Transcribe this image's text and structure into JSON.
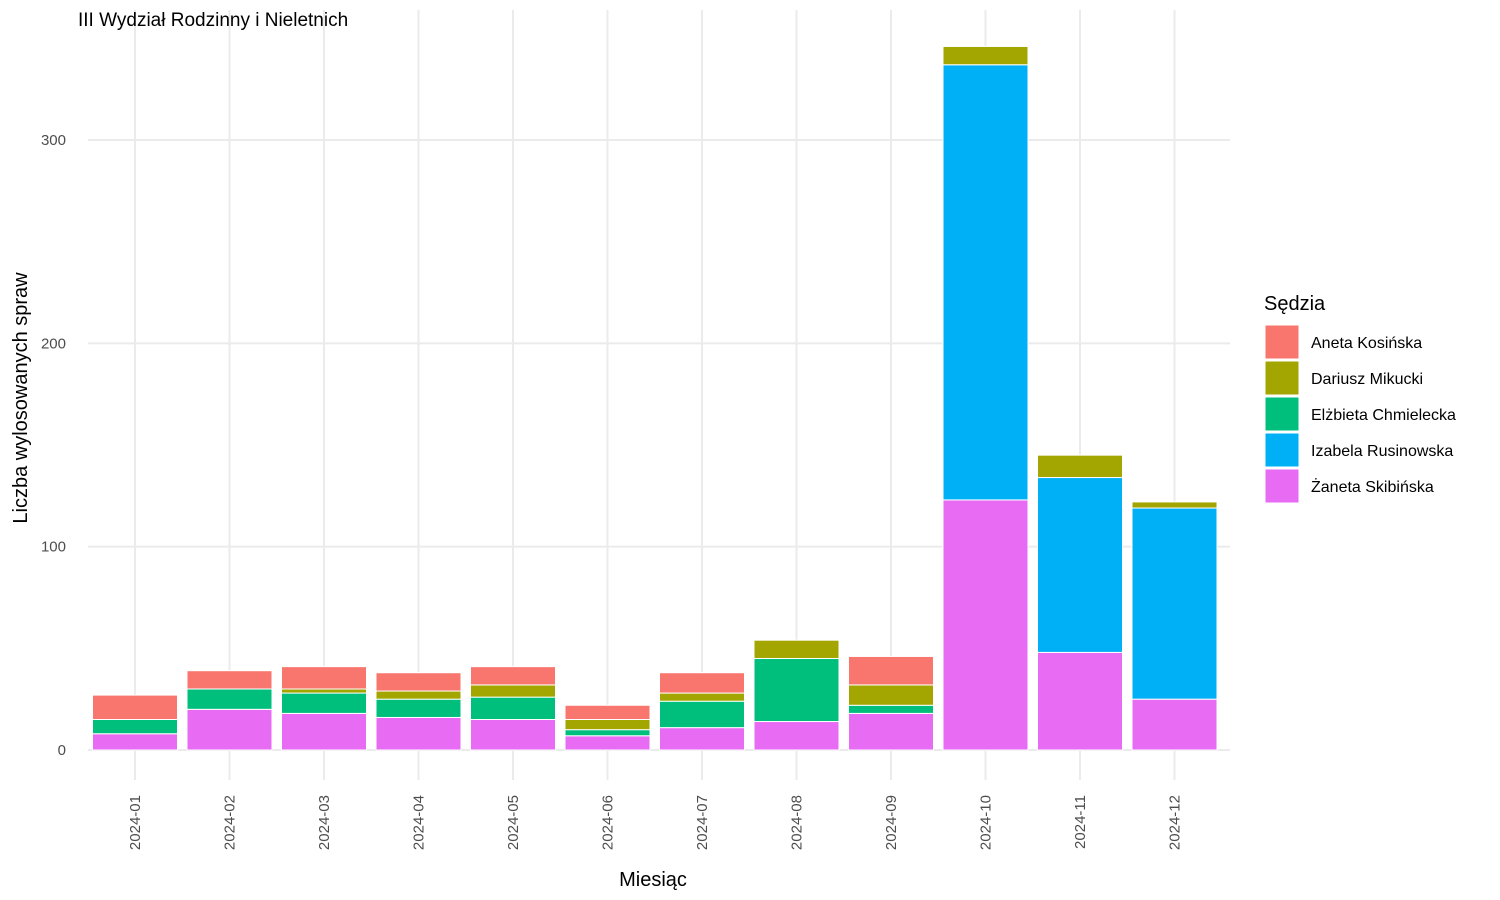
{
  "chart_data": {
    "type": "bar",
    "stacked": true,
    "title": "III Wydział Rodzinny i Nieletnich",
    "xlabel": "Miesiąc",
    "ylabel": "Liczba wylosowanych spraw",
    "ylim": [
      -13,
      348
    ],
    "yticks": [
      0,
      100,
      200,
      300
    ],
    "grid": true,
    "legend_title": "Sędzia",
    "legend_position": "right",
    "categories": [
      "2024-01",
      "2024-02",
      "2024-03",
      "2024-04",
      "2024-05",
      "2024-06",
      "2024-07",
      "2024-08",
      "2024-09",
      "2024-10",
      "2024-11",
      "2024-12"
    ],
    "series": [
      {
        "name": "Żaneta Skibińska",
        "color": "#E76BF3",
        "values": [
          8,
          20,
          18,
          16,
          15,
          7,
          11,
          14,
          18,
          123,
          48,
          25
        ]
      },
      {
        "name": "Izabela Rusinowska",
        "color": "#00B0F6",
        "values": [
          0,
          0,
          0,
          0,
          0,
          0,
          0,
          0,
          0,
          214,
          86,
          94
        ]
      },
      {
        "name": "Elżbieta Chmielecka",
        "color": "#00BF7D",
        "values": [
          7,
          10,
          10,
          9,
          11,
          3,
          13,
          31,
          4,
          0,
          0,
          0
        ]
      },
      {
        "name": "Dariusz Mikucki",
        "color": "#A3A500",
        "values": [
          0,
          0,
          2,
          4,
          6,
          5,
          4,
          9,
          10,
          9,
          11,
          3
        ]
      },
      {
        "name": "Aneta Kosińska",
        "color": "#F8766D",
        "values": [
          12,
          9,
          11,
          9,
          9,
          7,
          10,
          0,
          14,
          0,
          0,
          0
        ]
      }
    ],
    "legend_order": [
      "Aneta Kosińska",
      "Dariusz Mikucki",
      "Elżbieta Chmielecka",
      "Izabela Rusinowska",
      "Żaneta Skibińska"
    ]
  }
}
